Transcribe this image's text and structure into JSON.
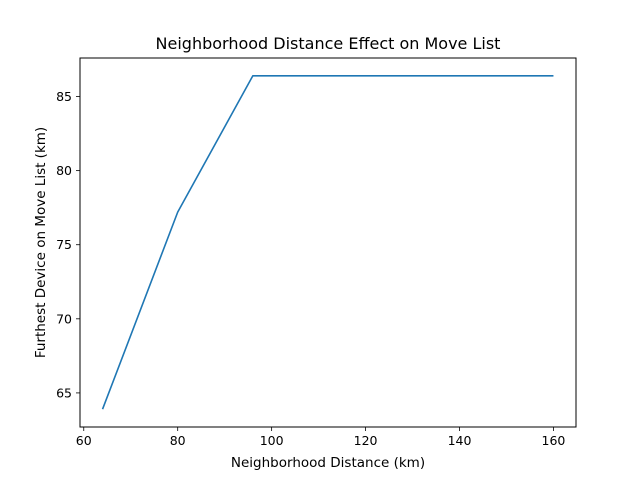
{
  "chart_data": {
    "type": "line",
    "title": "Neighborhood Distance Effect on Move List",
    "xlabel": "Neighborhood Distance (km)",
    "ylabel": "Furthest Device on Move List (km)",
    "xlim": [
      59.2,
      164.8
    ],
    "ylim": [
      62.7,
      87.6
    ],
    "x_ticks": [
      60,
      80,
      100,
      120,
      140,
      160
    ],
    "y_ticks": [
      65,
      70,
      75,
      80,
      85
    ],
    "x_tick_labels": [
      "60",
      "80",
      "100",
      "120",
      "140",
      "160"
    ],
    "y_tick_labels": [
      "65",
      "70",
      "75",
      "80",
      "85"
    ],
    "grid": false,
    "series": [
      {
        "color": "#1f77b4",
        "x": [
          64,
          80,
          96,
          112,
          128,
          144,
          160
        ],
        "y": [
          63.9,
          77.2,
          86.4,
          86.4,
          86.4,
          86.4,
          86.4
        ]
      }
    ]
  }
}
